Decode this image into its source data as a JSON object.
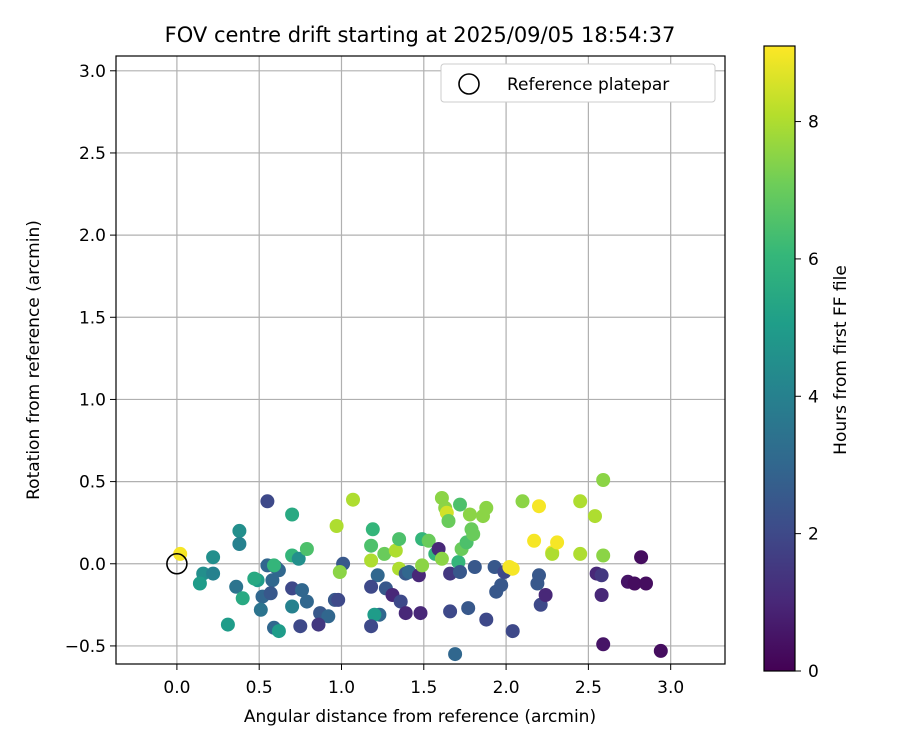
{
  "chart_data": {
    "type": "scatter",
    "title": "FOV centre drift starting at 2025/09/05 18:54:37",
    "xlabel": "Angular distance from reference (arcmin)",
    "ylabel": "Rotation from reference (arcmin)",
    "xlim": [
      -0.37,
      3.33
    ],
    "ylim": [
      -0.61,
      3.09
    ],
    "xticks": [
      "0.0",
      "0.5",
      "1.0",
      "1.5",
      "2.0",
      "2.5",
      "3.0"
    ],
    "yticks": [
      "−0.5",
      "0.0",
      "0.5",
      "1.0",
      "1.5",
      "2.0",
      "2.5",
      "3.0"
    ],
    "grid": true,
    "legend": {
      "position": "top-right",
      "entries": [
        "Reference platepar"
      ]
    },
    "reference": {
      "x": 0.0,
      "y": 0.0
    },
    "colorbar": {
      "label": "Hours from first FF file",
      "range": [
        0,
        9.1
      ],
      "ticks": [
        "0",
        "2",
        "4",
        "6",
        "8"
      ],
      "colormap": "viridis"
    },
    "points": [
      [
        0.02,
        0.06,
        9.0
      ],
      [
        1.01,
        0.0,
        2.5
      ],
      [
        0.55,
        -0.01,
        3.0
      ],
      [
        0.6,
        -0.02,
        2.0
      ],
      [
        0.62,
        -0.04,
        3.0
      ],
      [
        0.58,
        -0.1,
        3.0
      ],
      [
        0.52,
        -0.2,
        3.0
      ],
      [
        0.57,
        -0.18,
        2.5
      ],
      [
        0.49,
        -0.1,
        5.0
      ],
      [
        0.47,
        -0.09,
        5.5
      ],
      [
        0.51,
        -0.28,
        3.5
      ],
      [
        0.38,
        0.2,
        4.5
      ],
      [
        0.38,
        0.12,
        4.0
      ],
      [
        0.22,
        0.04,
        4.5
      ],
      [
        0.16,
        -0.06,
        4.5
      ],
      [
        0.22,
        -0.06,
        4.0
      ],
      [
        0.14,
        -0.12,
        5.0
      ],
      [
        0.36,
        -0.14,
        3.5
      ],
      [
        0.4,
        -0.21,
        5.5
      ],
      [
        0.31,
        -0.37,
        5.0
      ],
      [
        0.55,
        0.38,
        2.0
      ],
      [
        0.7,
        0.3,
        5.5
      ],
      [
        0.59,
        -0.01,
        6.0
      ],
      [
        0.7,
        0.05,
        6.0
      ],
      [
        0.74,
        0.03,
        4.5
      ],
      [
        0.79,
        0.09,
        6.5
      ],
      [
        0.7,
        -0.15,
        2.0
      ],
      [
        0.76,
        -0.16,
        3.0
      ],
      [
        0.79,
        -0.23,
        3.0
      ],
      [
        0.87,
        -0.3,
        2.5
      ],
      [
        0.92,
        -0.32,
        3.0
      ],
      [
        0.96,
        -0.22,
        2.5
      ],
      [
        0.98,
        -0.22,
        2.0
      ],
      [
        0.7,
        -0.26,
        4.0
      ],
      [
        0.86,
        -0.37,
        1.5
      ],
      [
        0.75,
        -0.38,
        2.0
      ],
      [
        0.59,
        -0.39,
        3.0
      ],
      [
        0.62,
        -0.41,
        5.0
      ],
      [
        0.97,
        0.23,
        8.0
      ],
      [
        0.99,
        -0.05,
        7.5
      ],
      [
        1.07,
        0.39,
        8.0
      ],
      [
        1.19,
        0.21,
        6.0
      ],
      [
        1.18,
        0.11,
        6.5
      ],
      [
        1.18,
        0.02,
        8.0
      ],
      [
        1.26,
        0.06,
        7.0
      ],
      [
        1.22,
        -0.07,
        3.0
      ],
      [
        1.27,
        -0.15,
        2.5
      ],
      [
        1.18,
        -0.14,
        2.0
      ],
      [
        1.31,
        -0.19,
        1.0
      ],
      [
        1.36,
        -0.23,
        2.0
      ],
      [
        1.39,
        -0.3,
        1.0
      ],
      [
        1.48,
        -0.3,
        1.0
      ],
      [
        1.23,
        -0.31,
        3.0
      ],
      [
        1.2,
        -0.31,
        5.0
      ],
      [
        1.18,
        -0.38,
        2.0
      ],
      [
        1.33,
        0.08,
        8.0
      ],
      [
        1.35,
        0.15,
        6.5
      ],
      [
        1.35,
        -0.03,
        8.0
      ],
      [
        1.39,
        -0.06,
        2.5
      ],
      [
        1.41,
        -0.05,
        3.0
      ],
      [
        1.47,
        -0.07,
        1.0
      ],
      [
        1.49,
        0.15,
        6.0
      ],
      [
        1.49,
        -0.01,
        7.5
      ],
      [
        1.53,
        0.14,
        7.0
      ],
      [
        1.57,
        0.06,
        6.0
      ],
      [
        1.59,
        0.09,
        1.0
      ],
      [
        1.61,
        0.03,
        7.5
      ],
      [
        1.61,
        0.4,
        7.5
      ],
      [
        1.63,
        0.34,
        7.5
      ],
      [
        1.64,
        0.31,
        8.5
      ],
      [
        1.65,
        0.26,
        7.0
      ],
      [
        1.66,
        -0.06,
        1.5
      ],
      [
        1.66,
        -0.29,
        2.0
      ],
      [
        1.69,
        -0.55,
        3.0
      ],
      [
        1.71,
        0.01,
        6.0
      ],
      [
        1.72,
        0.36,
        6.5
      ],
      [
        1.72,
        -0.05,
        2.5
      ],
      [
        1.73,
        0.09,
        7.0
      ],
      [
        1.76,
        0.13,
        6.5
      ],
      [
        1.77,
        -0.27,
        2.5
      ],
      [
        1.78,
        0.3,
        7.5
      ],
      [
        1.79,
        0.21,
        7.0
      ],
      [
        1.8,
        0.18,
        7.0
      ],
      [
        1.81,
        -0.02,
        2.5
      ],
      [
        1.86,
        0.29,
        7.5
      ],
      [
        1.88,
        0.34,
        7.5
      ],
      [
        1.88,
        -0.34,
        2.0
      ],
      [
        1.93,
        -0.02,
        2.5
      ],
      [
        1.94,
        -0.17,
        2.5
      ],
      [
        1.97,
        -0.13,
        2.5
      ],
      [
        1.99,
        -0.05,
        2.0
      ],
      [
        2.02,
        -0.02,
        9.0
      ],
      [
        2.04,
        -0.03,
        9.0
      ],
      [
        2.04,
        -0.41,
        2.0
      ],
      [
        2.1,
        0.38,
        7.5
      ],
      [
        2.17,
        0.14,
        9.0
      ],
      [
        2.2,
        0.35,
        9.0
      ],
      [
        2.2,
        -0.07,
        2.5
      ],
      [
        2.19,
        -0.12,
        2.5
      ],
      [
        2.21,
        -0.25,
        2.0
      ],
      [
        2.24,
        -0.19,
        1.0
      ],
      [
        2.28,
        0.07,
        9.0
      ],
      [
        2.28,
        0.06,
        8.0
      ],
      [
        2.31,
        0.13,
        9.0
      ],
      [
        2.45,
        0.38,
        8.0
      ],
      [
        2.45,
        0.06,
        8.0
      ],
      [
        2.54,
        0.29,
        8.0
      ],
      [
        2.55,
        -0.06,
        1.0
      ],
      [
        2.58,
        -0.07,
        1.5
      ],
      [
        2.58,
        -0.19,
        1.0
      ],
      [
        2.59,
        0.51,
        7.5
      ],
      [
        2.59,
        0.05,
        7.5
      ],
      [
        2.59,
        -0.49,
        0.5
      ],
      [
        2.74,
        -0.11,
        0.5
      ],
      [
        2.78,
        -0.12,
        0.3
      ],
      [
        2.82,
        0.04,
        0.3
      ],
      [
        2.85,
        -0.12,
        0.3
      ],
      [
        2.94,
        -0.53,
        0.3
      ]
    ]
  }
}
